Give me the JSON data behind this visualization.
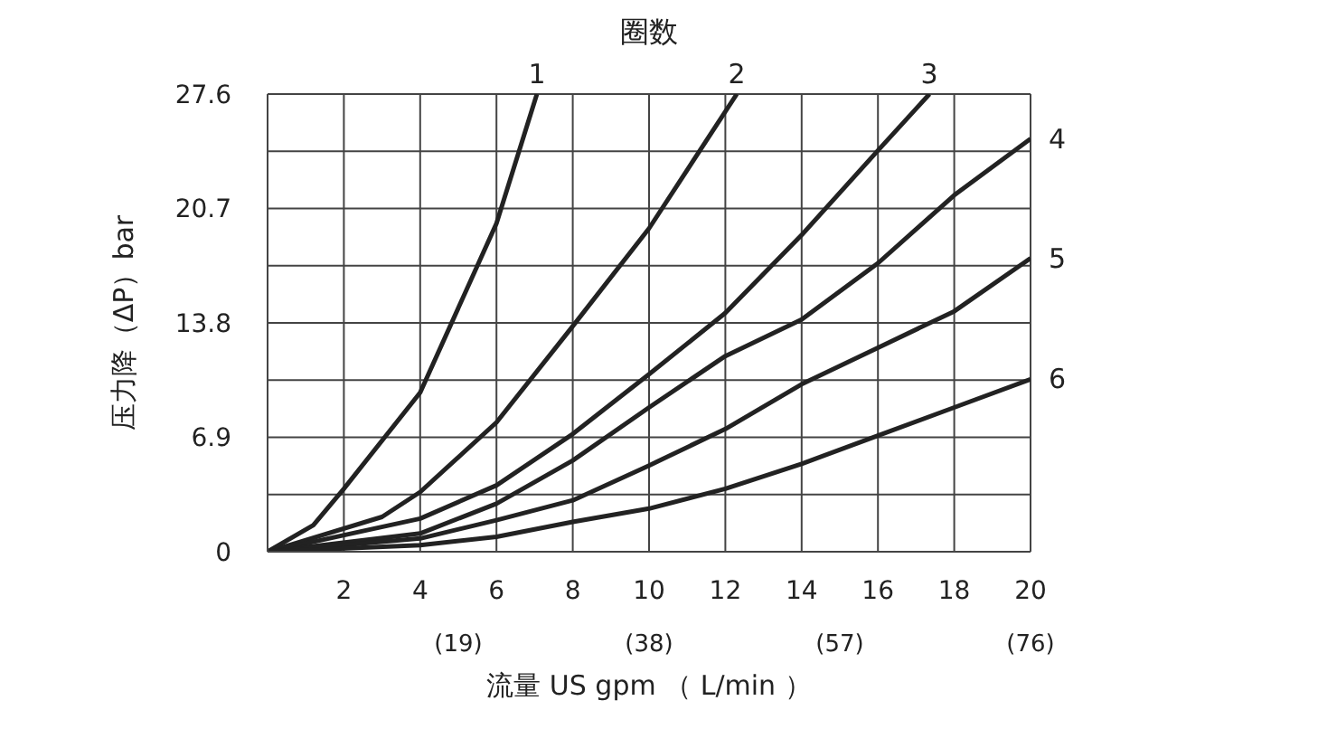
{
  "chart_data": {
    "type": "line",
    "title": "圈数",
    "xlabel": "流量 US gpm （ L/min ）",
    "ylabel": "压力降（ΔP）bar",
    "series": [
      {
        "name": "1",
        "color": "#222222",
        "x": [
          0,
          1.2,
          2,
          4,
          6,
          7.06
        ],
        "values": [
          0,
          1.6,
          3.8,
          9.6,
          19.8,
          27.6
        ]
      },
      {
        "name": "2",
        "color": "#222222",
        "x": [
          0,
          3,
          4,
          6,
          8,
          10,
          12.3
        ],
        "values": [
          0,
          2.1,
          3.6,
          7.8,
          13.6,
          19.5,
          27.6
        ]
      },
      {
        "name": "3",
        "color": "#222222",
        "x": [
          0,
          4,
          6,
          8,
          10,
          12,
          14,
          16,
          17.35
        ],
        "values": [
          0,
          2.0,
          4.0,
          7.1,
          10.7,
          14.4,
          19.1,
          24.2,
          27.6
        ]
      },
      {
        "name": "4",
        "color": "#222222",
        "x": [
          0,
          4,
          6,
          8,
          10,
          12,
          14,
          16,
          18,
          20
        ],
        "values": [
          0,
          1.1,
          2.9,
          5.5,
          8.7,
          11.8,
          14.0,
          17.4,
          21.5,
          24.9
        ]
      },
      {
        "name": "5",
        "color": "#222222",
        "x": [
          0,
          4,
          6,
          8,
          10,
          12,
          14,
          16,
          18,
          20
        ],
        "values": [
          0,
          0.8,
          1.9,
          3.1,
          5.2,
          7.4,
          10.1,
          12.3,
          14.5,
          17.7
        ]
      },
      {
        "name": "6",
        "color": "#222222",
        "x": [
          0,
          4,
          6,
          8,
          10,
          12,
          14,
          16,
          18,
          20
        ],
        "values": [
          0,
          0.4,
          0.9,
          1.8,
          2.6,
          3.8,
          5.3,
          7.0,
          8.7,
          10.4
        ]
      }
    ],
    "xlim": [
      0,
      20
    ],
    "xticks": [
      2,
      4,
      6,
      8,
      10,
      12,
      14,
      16,
      18,
      20
    ],
    "x2lim": [
      0,
      76
    ],
    "x2ticks": [
      {
        "value": 19,
        "label": "(19)"
      },
      {
        "value": 38,
        "label": "(38)"
      },
      {
        "value": 57,
        "label": "(57)"
      },
      {
        "value": 76,
        "label": "(76)"
      }
    ],
    "ylim": [
      0,
      27.6
    ],
    "yticks": [
      0,
      {
        "value": 3.45,
        "label": null
      },
      6.9,
      {
        "value": 10.35,
        "label": null
      },
      13.8,
      {
        "value": 17.25,
        "label": null
      },
      20.7,
      {
        "value": 24.15,
        "label": null
      },
      27.6
    ],
    "grid": true,
    "legend": false,
    "marker": "none",
    "line_style": "solid"
  }
}
